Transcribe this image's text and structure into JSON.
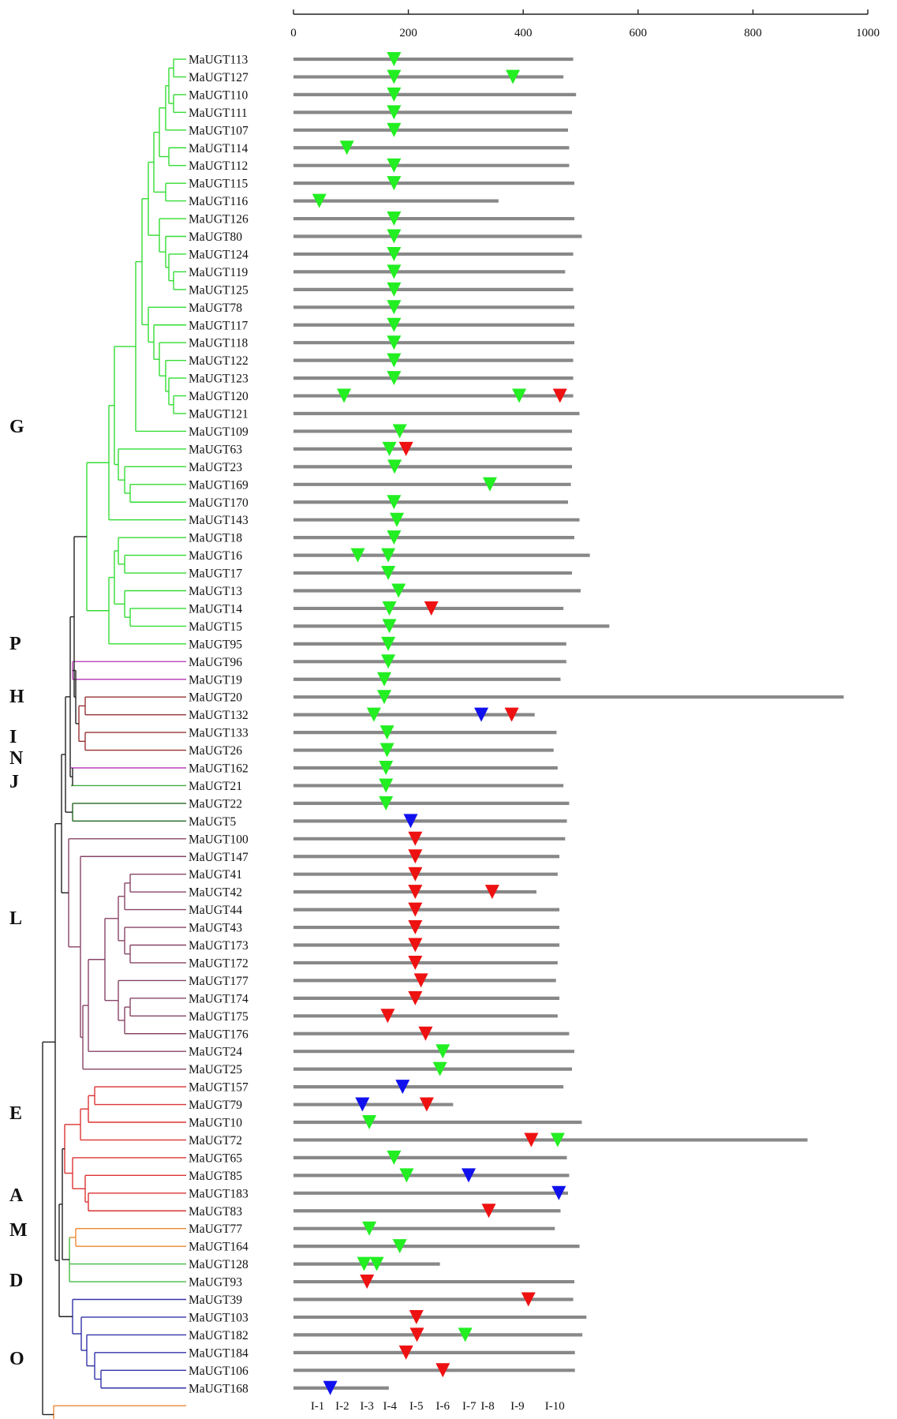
{
  "axis": {
    "ticks": [
      "0",
      "200",
      "400",
      "600",
      "800",
      "1000"
    ],
    "max": 1000
  },
  "colors": {
    "G": "#33dd33",
    "P": "#bb44bb",
    "H": "#993333",
    "I": "#bb44bb",
    "N": "#44aa44",
    "J": "#226622",
    "L": "#884466",
    "E": "#dd3333",
    "A": "#ee8833",
    "M": "#44bb44",
    "D": "#3333aa",
    "O": "#ee8833",
    "root": "#222222",
    "bar": "#888888",
    "marker_green": "#22ee22",
    "marker_red": "#ee1111",
    "marker_blue": "#1111ee"
  },
  "groups": [
    {
      "name": "G",
      "from": 0,
      "to": 33
    },
    {
      "name": "P",
      "from": 34,
      "to": 35
    },
    {
      "name": "H",
      "from": 36,
      "to": 39
    },
    {
      "name": "I",
      "from": 40,
      "to": 40
    },
    {
      "name": "N",
      "from": 41,
      "to": 41
    },
    {
      "name": "J",
      "from": 42,
      "to": 43
    },
    {
      "name": "L",
      "from": 44,
      "to": 57
    },
    {
      "name": "E",
      "from": 58,
      "to": 65
    },
    {
      "name": "A",
      "from": 66,
      "to": 67
    },
    {
      "name": "M",
      "from": 68,
      "to": 69
    },
    {
      "name": "D",
      "from": 70,
      "to": 75
    },
    {
      "name": "O",
      "from": 76,
      "to": 77
    }
  ],
  "genes": [
    {
      "name": "MaUGT113",
      "length": 487,
      "markers": [
        {
          "p": 175,
          "c": "g"
        }
      ]
    },
    {
      "name": "MaUGT127",
      "length": 470,
      "markers": [
        {
          "p": 175,
          "c": "g"
        },
        {
          "p": 382,
          "c": "g"
        }
      ]
    },
    {
      "name": "MaUGT110",
      "length": 492,
      "markers": [
        {
          "p": 175,
          "c": "g"
        }
      ]
    },
    {
      "name": "MaUGT111",
      "length": 485,
      "markers": [
        {
          "p": 175,
          "c": "g"
        }
      ]
    },
    {
      "name": "MaUGT107",
      "length": 478,
      "markers": [
        {
          "p": 175,
          "c": "g"
        }
      ]
    },
    {
      "name": "MaUGT114",
      "length": 480,
      "markers": [
        {
          "p": 93,
          "c": "g"
        }
      ]
    },
    {
      "name": "MaUGT112",
      "length": 480,
      "markers": [
        {
          "p": 175,
          "c": "g"
        }
      ]
    },
    {
      "name": "MaUGT115",
      "length": 489,
      "markers": [
        {
          "p": 175,
          "c": "g"
        }
      ]
    },
    {
      "name": "MaUGT116",
      "length": 357,
      "markers": [
        {
          "p": 45,
          "c": "g"
        }
      ]
    },
    {
      "name": "MaUGT126",
      "length": 489,
      "markers": [
        {
          "p": 175,
          "c": "g"
        }
      ]
    },
    {
      "name": "MaUGT80",
      "length": 502,
      "markers": [
        {
          "p": 175,
          "c": "g"
        }
      ]
    },
    {
      "name": "MaUGT124",
      "length": 487,
      "markers": [
        {
          "p": 175,
          "c": "g"
        }
      ]
    },
    {
      "name": "MaUGT119",
      "length": 473,
      "markers": [
        {
          "p": 175,
          "c": "g"
        }
      ]
    },
    {
      "name": "MaUGT125",
      "length": 487,
      "markers": [
        {
          "p": 175,
          "c": "g"
        }
      ]
    },
    {
      "name": "MaUGT78",
      "length": 489,
      "markers": [
        {
          "p": 175,
          "c": "g"
        }
      ]
    },
    {
      "name": "MaUGT117",
      "length": 489,
      "markers": [
        {
          "p": 175,
          "c": "g"
        }
      ]
    },
    {
      "name": "MaUGT118",
      "length": 489,
      "markers": [
        {
          "p": 175,
          "c": "g"
        }
      ]
    },
    {
      "name": "MaUGT122",
      "length": 487,
      "markers": [
        {
          "p": 175,
          "c": "g"
        }
      ]
    },
    {
      "name": "MaUGT123",
      "length": 487,
      "markers": [
        {
          "p": 175,
          "c": "g"
        }
      ]
    },
    {
      "name": "MaUGT120",
      "length": 487,
      "markers": [
        {
          "p": 88,
          "c": "g"
        },
        {
          "p": 393,
          "c": "g"
        },
        {
          "p": 464,
          "c": "r"
        }
      ]
    },
    {
      "name": "MaUGT121",
      "length": 498,
      "markers": []
    },
    {
      "name": "MaUGT109",
      "length": 485,
      "markers": [
        {
          "p": 185,
          "c": "g"
        }
      ]
    },
    {
      "name": "MaUGT63",
      "length": 485,
      "markers": [
        {
          "p": 167,
          "c": "g"
        },
        {
          "p": 196,
          "c": "r"
        }
      ]
    },
    {
      "name": "MaUGT23",
      "length": 485,
      "markers": [
        {
          "p": 176,
          "c": "g"
        }
      ]
    },
    {
      "name": "MaUGT169",
      "length": 483,
      "markers": [
        {
          "p": 342,
          "c": "g"
        }
      ]
    },
    {
      "name": "MaUGT170",
      "length": 478,
      "markers": [
        {
          "p": 175,
          "c": "g"
        }
      ]
    },
    {
      "name": "MaUGT143",
      "length": 498,
      "markers": [
        {
          "p": 180,
          "c": "g"
        }
      ]
    },
    {
      "name": "MaUGT18",
      "length": 489,
      "markers": [
        {
          "p": 175,
          "c": "g"
        }
      ]
    },
    {
      "name": "MaUGT16",
      "length": 516,
      "markers": [
        {
          "p": 112,
          "c": "g"
        },
        {
          "p": 165,
          "c": "g"
        }
      ]
    },
    {
      "name": "MaUGT17",
      "length": 485,
      "markers": [
        {
          "p": 165,
          "c": "g"
        }
      ]
    },
    {
      "name": "MaUGT13",
      "length": 500,
      "markers": [
        {
          "p": 183,
          "c": "g"
        }
      ]
    },
    {
      "name": "MaUGT14",
      "length": 470,
      "markers": [
        {
          "p": 167,
          "c": "g"
        },
        {
          "p": 240,
          "c": "r"
        }
      ]
    },
    {
      "name": "MaUGT15",
      "length": 550,
      "markers": [
        {
          "p": 167,
          "c": "g"
        }
      ]
    },
    {
      "name": "MaUGT95",
      "length": 475,
      "markers": [
        {
          "p": 165,
          "c": "g"
        }
      ]
    },
    {
      "name": "MaUGT96",
      "length": 475,
      "markers": [
        {
          "p": 165,
          "c": "g"
        }
      ]
    },
    {
      "name": "MaUGT19",
      "length": 465,
      "markers": [
        {
          "p": 158,
          "c": "g"
        }
      ]
    },
    {
      "name": "MaUGT20",
      "length": 958,
      "markers": [
        {
          "p": 158,
          "c": "g"
        }
      ]
    },
    {
      "name": "MaUGT132",
      "length": 420,
      "markers": [
        {
          "p": 140,
          "c": "g"
        },
        {
          "p": 327,
          "c": "b"
        },
        {
          "p": 380,
          "c": "r"
        }
      ]
    },
    {
      "name": "MaUGT133",
      "length": 458,
      "markers": [
        {
          "p": 163,
          "c": "g"
        }
      ]
    },
    {
      "name": "MaUGT26",
      "length": 453,
      "markers": [
        {
          "p": 163,
          "c": "g"
        }
      ]
    },
    {
      "name": "MaUGT162",
      "length": 460,
      "markers": [
        {
          "p": 161,
          "c": "g"
        }
      ]
    },
    {
      "name": "MaUGT21",
      "length": 470,
      "markers": [
        {
          "p": 161,
          "c": "g"
        }
      ]
    },
    {
      "name": "MaUGT22",
      "length": 480,
      "markers": [
        {
          "p": 161,
          "c": "g"
        }
      ]
    },
    {
      "name": "MaUGT5",
      "length": 476,
      "markers": [
        {
          "p": 204,
          "c": "b"
        }
      ]
    },
    {
      "name": "MaUGT100",
      "length": 473,
      "markers": [
        {
          "p": 212,
          "c": "r"
        }
      ]
    },
    {
      "name": "MaUGT147",
      "length": 463,
      "markers": [
        {
          "p": 212,
          "c": "r"
        }
      ]
    },
    {
      "name": "MaUGT41",
      "length": 460,
      "markers": [
        {
          "p": 212,
          "c": "r"
        }
      ]
    },
    {
      "name": "MaUGT42",
      "length": 423,
      "markers": [
        {
          "p": 212,
          "c": "r"
        },
        {
          "p": 346,
          "c": "r"
        }
      ]
    },
    {
      "name": "MaUGT44",
      "length": 463,
      "markers": [
        {
          "p": 212,
          "c": "r"
        }
      ]
    },
    {
      "name": "MaUGT43",
      "length": 463,
      "markers": [
        {
          "p": 212,
          "c": "r"
        }
      ]
    },
    {
      "name": "MaUGT173",
      "length": 463,
      "markers": [
        {
          "p": 212,
          "c": "r"
        }
      ]
    },
    {
      "name": "MaUGT172",
      "length": 460,
      "markers": [
        {
          "p": 212,
          "c": "r"
        }
      ]
    },
    {
      "name": "MaUGT177",
      "length": 457,
      "markers": [
        {
          "p": 222,
          "c": "r"
        }
      ]
    },
    {
      "name": "MaUGT174",
      "length": 463,
      "markers": [
        {
          "p": 212,
          "c": "r"
        }
      ]
    },
    {
      "name": "MaUGT175",
      "length": 460,
      "markers": [
        {
          "p": 164,
          "c": "r"
        }
      ]
    },
    {
      "name": "MaUGT176",
      "length": 480,
      "markers": [
        {
          "p": 230,
          "c": "r"
        }
      ]
    },
    {
      "name": "MaUGT24",
      "length": 489,
      "markers": [
        {
          "p": 260,
          "c": "g"
        }
      ]
    },
    {
      "name": "MaUGT25",
      "length": 485,
      "markers": [
        {
          "p": 255,
          "c": "g"
        }
      ]
    },
    {
      "name": "MaUGT157",
      "length": 470,
      "markers": [
        {
          "p": 190,
          "c": "b"
        }
      ]
    },
    {
      "name": "MaUGT79",
      "length": 278,
      "markers": [
        {
          "p": 120,
          "c": "b"
        },
        {
          "p": 232,
          "c": "r"
        }
      ]
    },
    {
      "name": "MaUGT10",
      "length": 502,
      "markers": [
        {
          "p": 132,
          "c": "g"
        }
      ]
    },
    {
      "name": "MaUGT72",
      "length": 895,
      "markers": [
        {
          "p": 414,
          "c": "r"
        },
        {
          "p": 460,
          "c": "g"
        }
      ]
    },
    {
      "name": "MaUGT65",
      "length": 476,
      "markers": [
        {
          "p": 175,
          "c": "g"
        }
      ]
    },
    {
      "name": "MaUGT85",
      "length": 480,
      "markers": [
        {
          "p": 197,
          "c": "g"
        },
        {
          "p": 305,
          "c": "b"
        }
      ]
    },
    {
      "name": "MaUGT183",
      "length": 478,
      "markers": [
        {
          "p": 462,
          "c": "b"
        }
      ]
    },
    {
      "name": "MaUGT83",
      "length": 465,
      "markers": [
        {
          "p": 340,
          "c": "r"
        }
      ]
    },
    {
      "name": "MaUGT77",
      "length": 455,
      "markers": [
        {
          "p": 132,
          "c": "g"
        }
      ]
    },
    {
      "name": "MaUGT164",
      "length": 498,
      "markers": [
        {
          "p": 185,
          "c": "g"
        }
      ]
    },
    {
      "name": "MaUGT128",
      "length": 255,
      "markers": [
        {
          "p": 123,
          "c": "g"
        },
        {
          "p": 145,
          "c": "g"
        }
      ]
    },
    {
      "name": "MaUGT93",
      "length": 489,
      "markers": [
        {
          "p": 128,
          "c": "r"
        }
      ]
    },
    {
      "name": "MaUGT39",
      "length": 487,
      "markers": [
        {
          "p": 409,
          "c": "r"
        }
      ]
    },
    {
      "name": "MaUGT103",
      "length": 510,
      "markers": [
        {
          "p": 214,
          "c": "r"
        }
      ]
    },
    {
      "name": "MaUGT182",
      "length": 503,
      "markers": [
        {
          "p": 215,
          "c": "r"
        },
        {
          "p": 299,
          "c": "g"
        }
      ]
    },
    {
      "name": "MaUGT184",
      "length": 490,
      "markers": [
        {
          "p": 196,
          "c": "r"
        }
      ]
    },
    {
      "name": "MaUGT106",
      "length": 490,
      "markers": [
        {
          "p": 260,
          "c": "r"
        }
      ]
    },
    {
      "name": "MaUGT168",
      "length": 166,
      "markers": [
        {
          "p": 64,
          "c": "b"
        }
      ]
    }
  ],
  "intron_labels": [
    {
      "label": "I-1",
      "pos": 42
    },
    {
      "label": "I-2",
      "pos": 85
    },
    {
      "label": "I-3",
      "pos": 128
    },
    {
      "label": "I-4",
      "pos": 168
    },
    {
      "label": "I-5",
      "pos": 214
    },
    {
      "label": "I-6",
      "pos": 260
    },
    {
      "label": "I-7",
      "pos": 306
    },
    {
      "label": "I-8",
      "pos": 338
    },
    {
      "label": "I-9",
      "pos": 390
    },
    {
      "label": "I-10",
      "pos": 455
    }
  ]
}
